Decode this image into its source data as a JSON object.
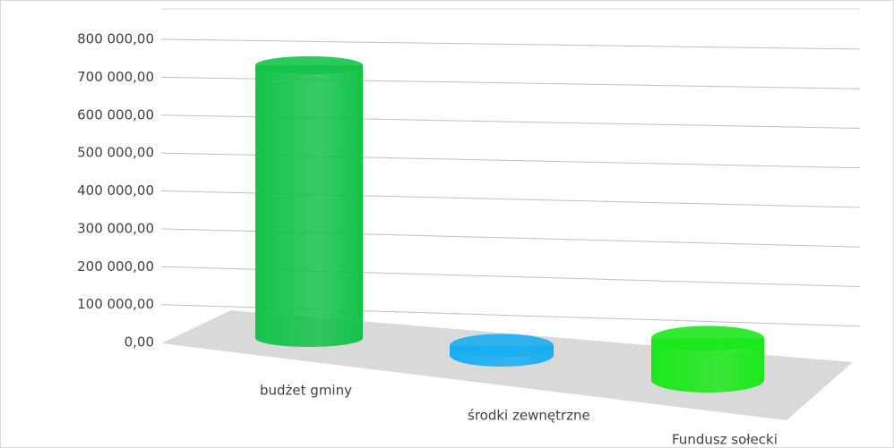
{
  "chart_data": {
    "type": "bar3d-cylinder",
    "categories": [
      "budżet gminy",
      "środki zewnętrzne",
      "Fundusz sołecki"
    ],
    "values": [
      720000,
      25000,
      110000
    ],
    "colors": [
      "#14c24a",
      "#1aaef0",
      "#1be81b"
    ],
    "ylim": [
      0,
      800000
    ],
    "yticks": [
      {
        "value": 0,
        "label": "0,00"
      },
      {
        "value": 100000,
        "label": "100 000,00"
      },
      {
        "value": 200000,
        "label": "200 000,00"
      },
      {
        "value": 300000,
        "label": "300 000,00"
      },
      {
        "value": 400000,
        "label": "400 000,00"
      },
      {
        "value": 500000,
        "label": "500 000,00"
      },
      {
        "value": 600000,
        "label": "600 000,00"
      },
      {
        "value": 700000,
        "label": "700 000,00"
      },
      {
        "value": 800000,
        "label": "800 000,00"
      }
    ],
    "grid": true
  }
}
